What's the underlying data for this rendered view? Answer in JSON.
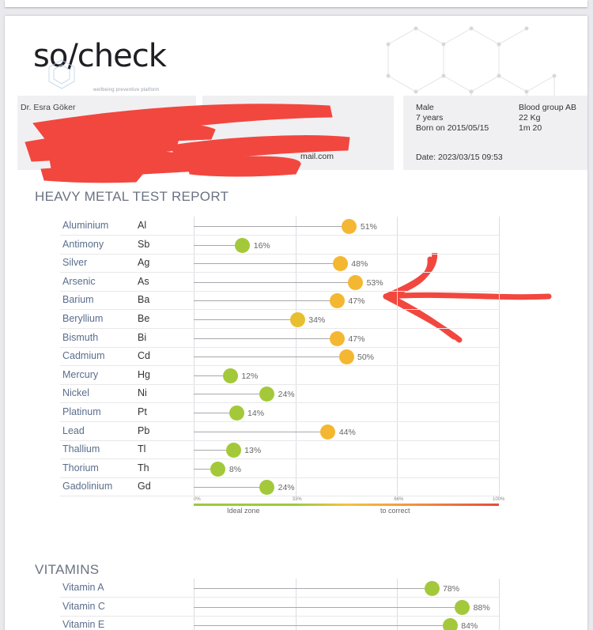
{
  "brand": {
    "logo_text": "so/check",
    "tagline": "wellbeing preventive platform"
  },
  "patient": {
    "doctor_name": "Dr. Esra Göker",
    "redacted_email_suffix": "mail.com",
    "gender": "Male",
    "age": "7 years",
    "born": "Born on 2015/05/15",
    "blood_group": "Blood group AB",
    "weight": "22 Kg",
    "height": "1m 20",
    "date": "Date: 2023/03/15 09:53"
  },
  "heavy_metals": {
    "title": "HEAVY METAL TEST REPORT",
    "scale": {
      "ticks": [
        "0%",
        "33%",
        "66%",
        "100%"
      ],
      "ideal_label": "Ideal zone",
      "correct_label": "to correct"
    },
    "items": [
      {
        "name": "Aluminium",
        "symbol": "Al",
        "value": 51,
        "label": "51%",
        "color": "#f4b731"
      },
      {
        "name": "Antimony",
        "symbol": "Sb",
        "value": 16,
        "label": "16%",
        "color": "#a3c93a"
      },
      {
        "name": "Silver",
        "symbol": "Ag",
        "value": 48,
        "label": "48%",
        "color": "#f4b731"
      },
      {
        "name": "Arsenic",
        "symbol": "As",
        "value": 53,
        "label": "53%",
        "color": "#f4b731"
      },
      {
        "name": "Barium",
        "symbol": "Ba",
        "value": 47,
        "label": "47%",
        "color": "#f4b731"
      },
      {
        "name": "Beryllium",
        "symbol": "Be",
        "value": 34,
        "label": "34%",
        "color": "#e8bf2e"
      },
      {
        "name": "Bismuth",
        "symbol": "Bi",
        "value": 47,
        "label": "47%",
        "color": "#f4b731"
      },
      {
        "name": "Cadmium",
        "symbol": "Cd",
        "value": 50,
        "label": "50%",
        "color": "#f4b731"
      },
      {
        "name": "Mercury",
        "symbol": "Hg",
        "value": 12,
        "label": "12%",
        "color": "#a3c93a"
      },
      {
        "name": "Nickel",
        "symbol": "Ni",
        "value": 24,
        "label": "24%",
        "color": "#a3c93a"
      },
      {
        "name": "Platinum",
        "symbol": "Pt",
        "value": 14,
        "label": "14%",
        "color": "#a3c93a"
      },
      {
        "name": "Lead",
        "symbol": "Pb",
        "value": 44,
        "label": "44%",
        "color": "#f4b731"
      },
      {
        "name": "Thallium",
        "symbol": "Tl",
        "value": 13,
        "label": "13%",
        "color": "#a3c93a"
      },
      {
        "name": "Thorium",
        "symbol": "Th",
        "value": 8,
        "label": "8%",
        "color": "#a3c93a"
      },
      {
        "name": "Gadolinium",
        "symbol": "Gd",
        "value": 24,
        "label": "24%",
        "color": "#a3c93a"
      }
    ]
  },
  "vitamins": {
    "title": "VITAMINS",
    "items": [
      {
        "name": "Vitamin A",
        "value": 78,
        "label": "78%",
        "color": "#a3c93a"
      },
      {
        "name": "Vitamin C",
        "value": 88,
        "label": "88%",
        "color": "#a3c93a"
      },
      {
        "name": "Vitamin E",
        "value": 84,
        "label": "84%",
        "color": "#a3c93a"
      }
    ]
  }
}
